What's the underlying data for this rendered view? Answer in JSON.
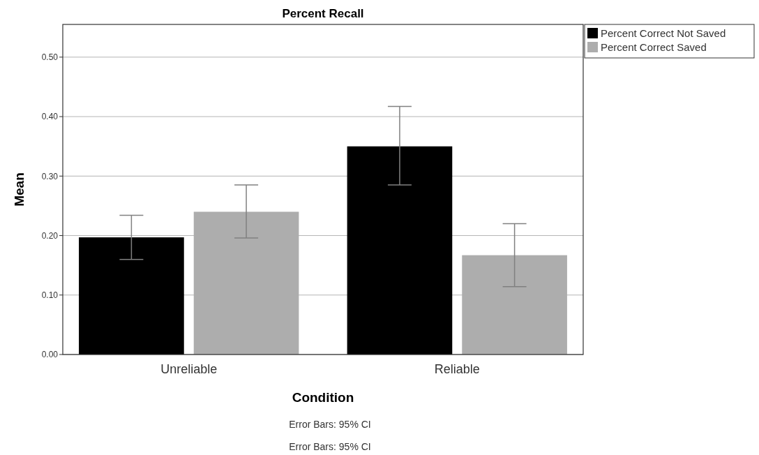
{
  "chart_data": {
    "type": "bar",
    "title": "Percent Recall",
    "xlabel": "Condition",
    "ylabel": "Mean",
    "categories": [
      "Unreliable",
      "Reliable"
    ],
    "series": [
      {
        "name": "Percent Correct Not Saved",
        "color": "#000000",
        "values": [
          0.197,
          0.35
        ],
        "errors": [
          [
            0.16,
            0.234
          ],
          [
            0.285,
            0.417
          ]
        ]
      },
      {
        "name": "Percent Correct Saved",
        "color": "#adadad",
        "values": [
          0.24,
          0.167
        ],
        "errors": [
          [
            0.196,
            0.285
          ],
          [
            0.114,
            0.22
          ]
        ]
      }
    ],
    "ylim": [
      0,
      0.555
    ],
    "yticks": [
      {
        "value": 0,
        "label": "0.00"
      },
      {
        "value": 0.1,
        "label": "0.10"
      },
      {
        "value": 0.2,
        "label": "0.20"
      },
      {
        "value": 0.3,
        "label": "0.30"
      },
      {
        "value": 0.4,
        "label": "0.40"
      },
      {
        "value": 0.5,
        "label": "0.50"
      }
    ],
    "grid": "y",
    "legend": "top right",
    "annotations": [
      "Error Bars: 95% CI",
      "Error Bars: 95% CI"
    ]
  }
}
